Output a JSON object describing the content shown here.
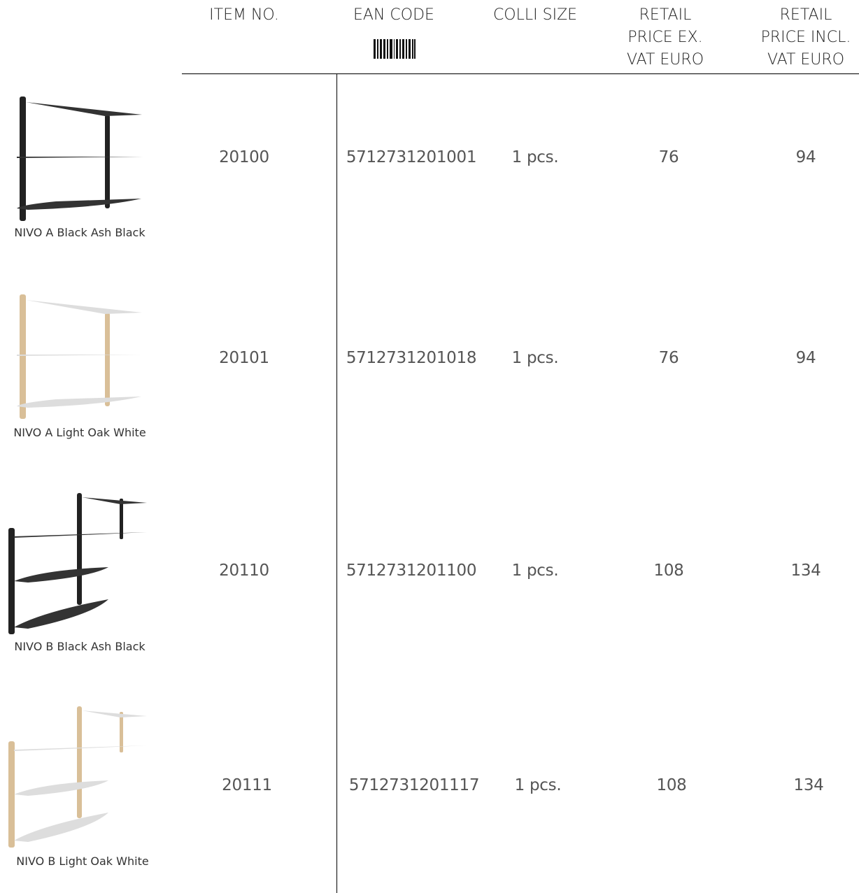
{
  "header": {
    "columns": [
      [
        "ITEM NO."
      ],
      [
        "EAN CODE"
      ],
      [
        "COLLI SIZE"
      ],
      [
        "RETAIL",
        "PRICE EX.",
        "VAT EURO"
      ],
      [
        "RETAIL",
        "PRICE INCL.",
        "VAT EURO"
      ]
    ]
  },
  "table": {
    "rows": [
      {
        "product": "NIVO A Black Ash Black",
        "item_no": "20100",
        "ean": "5712731201001",
        "colli": "1 pcs.",
        "price_ex_vat": 76,
        "price_incl_vat": 94
      },
      {
        "product": "NIVO A Light Oak White",
        "item_no": "20101",
        "ean": "5712731201018",
        "colli": "1 pcs.",
        "price_ex_vat": 76,
        "price_incl_vat": 94
      },
      {
        "product": "NIVO B Black Ash Black",
        "item_no": "20110",
        "ean": "5712731201100",
        "colli": "1 pcs.",
        "price_ex_vat": 108,
        "price_incl_vat": 134
      },
      {
        "product": "NIVO B Light Oak White",
        "item_no": "20111",
        "ean": "5712731201117",
        "colli": "1 pcs.",
        "price_ex_vat": 108,
        "price_incl_vat": 134
      }
    ]
  }
}
